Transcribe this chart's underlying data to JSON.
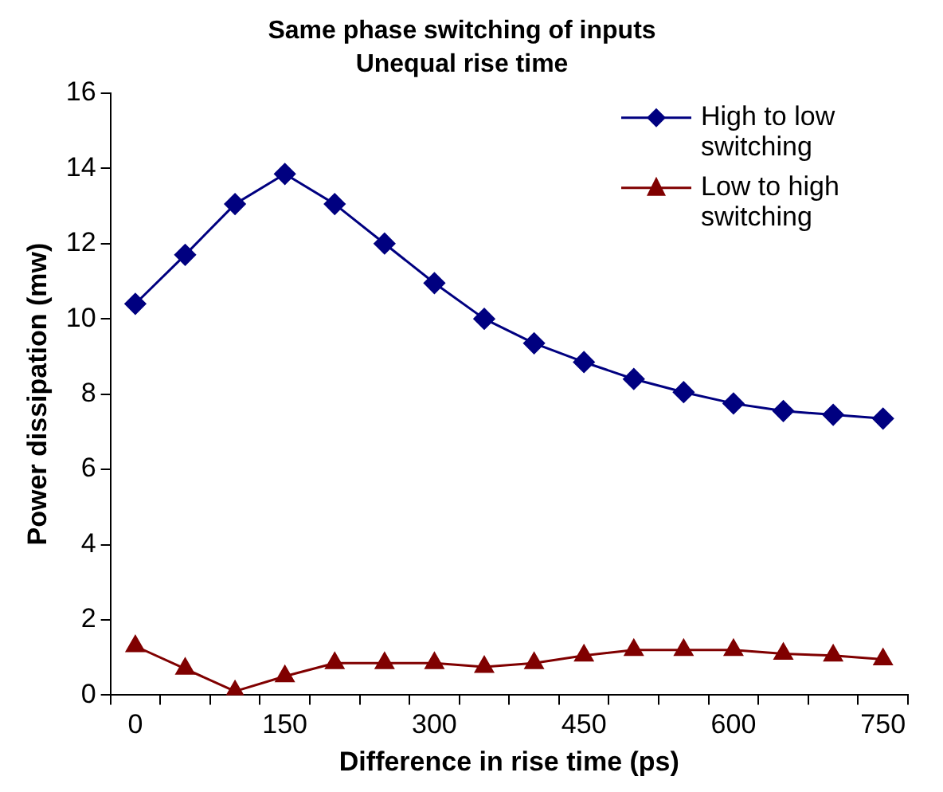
{
  "chart_data": {
    "type": "line",
    "title": "Same phase switching of inputs",
    "subtitle": "Unequal rise time",
    "xlabel": "Difference in rise time (ps)",
    "ylabel": "Power dissipation (mw)",
    "categories": [
      "0",
      null,
      null,
      "150",
      null,
      null,
      "300",
      null,
      null,
      "450",
      null,
      null,
      "600",
      null,
      null,
      "750"
    ],
    "series": [
      {
        "name": "High to low switching",
        "color": "#000080",
        "marker": "diamond",
        "values": [
          10.4,
          11.7,
          13.05,
          13.85,
          13.05,
          12.0,
          10.95,
          10.0,
          9.35,
          8.85,
          8.4,
          8.05,
          7.75,
          7.55,
          7.45,
          7.35
        ]
      },
      {
        "name": "Low to high switching",
        "color": "#800000",
        "marker": "triangle",
        "values": [
          1.3,
          0.7,
          0.1,
          0.5,
          0.85,
          0.85,
          0.85,
          0.75,
          0.85,
          1.05,
          1.2,
          1.2,
          1.2,
          1.1,
          1.05,
          0.95
        ]
      }
    ],
    "ylim": [
      0,
      16
    ],
    "yticks": [
      0,
      2,
      4,
      6,
      8,
      10,
      12,
      14,
      16
    ],
    "grid": false,
    "legend": "top right",
    "line_style": "solid"
  }
}
